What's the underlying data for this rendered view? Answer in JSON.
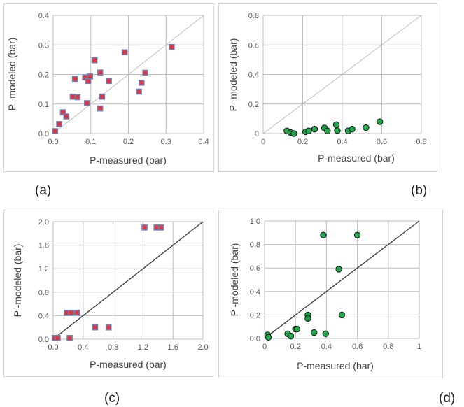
{
  "colors": {
    "square_face": "#e8323a",
    "square_edge": "#6c80b8",
    "circle_face": "#1fa84a",
    "circle_edge": "#111111",
    "grid": "#bdbdbd",
    "identity_light": "#bdbdbd",
    "identity_dark": "#404040",
    "panel_border": "#d4d4d4"
  },
  "chart_data": [
    {
      "panel_label": "(a)",
      "type": "scatter",
      "marker": "square",
      "xlabel": "P-measured (bar)",
      "ylabel": "P -modeled (bar)",
      "xlim": [
        0,
        0.4
      ],
      "ylim": [
        0,
        0.4
      ],
      "xticks": [
        0,
        0.1,
        0.2,
        0.3,
        0.4
      ],
      "yticks": [
        0,
        0.1,
        0.2,
        0.3,
        0.4
      ],
      "xtick_labels": [
        "0.0",
        "0.1",
        "0.2",
        "0.3",
        "0.4"
      ],
      "ytick_labels": [
        "0.0",
        "0.1",
        "0.2",
        "0.3",
        "0.4"
      ],
      "grid": true,
      "identity_line": "light",
      "points": [
        [
          0.005,
          0.008
        ],
        [
          0.016,
          0.032
        ],
        [
          0.026,
          0.072
        ],
        [
          0.035,
          0.058
        ],
        [
          0.052,
          0.125
        ],
        [
          0.058,
          0.185
        ],
        [
          0.065,
          0.123
        ],
        [
          0.085,
          0.19
        ],
        [
          0.09,
          0.103
        ],
        [
          0.093,
          0.178
        ],
        [
          0.098,
          0.193
        ],
        [
          0.11,
          0.248
        ],
        [
          0.125,
          0.207
        ],
        [
          0.125,
          0.085
        ],
        [
          0.13,
          0.125
        ],
        [
          0.148,
          0.178
        ],
        [
          0.19,
          0.275
        ],
        [
          0.228,
          0.142
        ],
        [
          0.235,
          0.172
        ],
        [
          0.245,
          0.206
        ],
        [
          0.315,
          0.293
        ]
      ]
    },
    {
      "panel_label": "(b)",
      "type": "scatter",
      "marker": "circle",
      "xlabel": "P-measured (bar)",
      "ylabel": "P -modeled (bar)",
      "xlim": [
        0,
        0.8
      ],
      "ylim": [
        0,
        0.8
      ],
      "xticks": [
        0,
        0.2,
        0.4,
        0.6,
        0.8
      ],
      "yticks": [
        0,
        0.2,
        0.4,
        0.6,
        0.8
      ],
      "xtick_labels": [
        "0",
        "0.2",
        "0.4",
        "0.6",
        "0.8"
      ],
      "ytick_labels": [
        "0",
        "0.2",
        "0.4",
        "0.6",
        "0.8"
      ],
      "grid": true,
      "identity_line": "light",
      "points": [
        [
          0.12,
          0.018
        ],
        [
          0.14,
          0.006
        ],
        [
          0.155,
          0.0
        ],
        [
          0.215,
          0.012
        ],
        [
          0.23,
          0.018
        ],
        [
          0.26,
          0.03
        ],
        [
          0.31,
          0.038
        ],
        [
          0.325,
          0.018
        ],
        [
          0.37,
          0.06
        ],
        [
          0.375,
          0.02
        ],
        [
          0.43,
          0.018
        ],
        [
          0.45,
          0.03
        ],
        [
          0.52,
          0.04
        ],
        [
          0.59,
          0.08
        ]
      ]
    },
    {
      "panel_label": "(c)",
      "type": "scatter",
      "marker": "square",
      "xlabel": "P-measured (bar)",
      "ylabel": "P -modeled (bar)",
      "xlim": [
        0,
        2.0
      ],
      "ylim": [
        0,
        2.0
      ],
      "xticks": [
        0,
        0.4,
        0.8,
        1.2,
        1.6,
        2.0
      ],
      "yticks": [
        0,
        0.4,
        0.8,
        1.2,
        1.6,
        2.0
      ],
      "xtick_labels": [
        "0.0",
        "0.4",
        "0.8",
        "1.2",
        "1.6",
        "2.0"
      ],
      "ytick_labels": [
        "0.0",
        "0.4",
        "0.8",
        "1.2",
        "1.6",
        "2.0"
      ],
      "grid": true,
      "identity_line": "dark",
      "points": [
        [
          0.02,
          0.02
        ],
        [
          0.06,
          0.02
        ],
        [
          0.22,
          0.02
        ],
        [
          0.18,
          0.45
        ],
        [
          0.24,
          0.45
        ],
        [
          0.32,
          0.45
        ],
        [
          0.56,
          0.2
        ],
        [
          0.74,
          0.2
        ],
        [
          1.22,
          1.9
        ],
        [
          1.38,
          1.9
        ],
        [
          1.44,
          1.9
        ]
      ]
    },
    {
      "panel_label": "(d)",
      "type": "scatter",
      "marker": "circle",
      "xlabel": "P-measured (bar)",
      "ylabel": "P -modeled (bar)",
      "xlim": [
        0,
        1
      ],
      "ylim": [
        0,
        1
      ],
      "xticks": [
        0,
        0.2,
        0.4,
        0.6,
        0.8,
        1
      ],
      "yticks": [
        0,
        0.2,
        0.4,
        0.6,
        0.8,
        1
      ],
      "xtick_labels": [
        "0",
        "0.2",
        "0.4",
        "0.6",
        "0.8",
        "1"
      ],
      "ytick_labels": [
        "0.0",
        "0.2",
        "0.4",
        "0.6",
        "0.8",
        "1.0"
      ],
      "grid": true,
      "identity_line": "dark",
      "points": [
        [
          0.02,
          0.03
        ],
        [
          0.025,
          0.01
        ],
        [
          0.15,
          0.04
        ],
        [
          0.17,
          0.02
        ],
        [
          0.2,
          0.08
        ],
        [
          0.21,
          0.08
        ],
        [
          0.28,
          0.2
        ],
        [
          0.28,
          0.17
        ],
        [
          0.32,
          0.05
        ],
        [
          0.38,
          0.88
        ],
        [
          0.395,
          0.04
        ],
        [
          0.48,
          0.59
        ],
        [
          0.5,
          0.2
        ],
        [
          0.6,
          0.88
        ]
      ]
    }
  ]
}
